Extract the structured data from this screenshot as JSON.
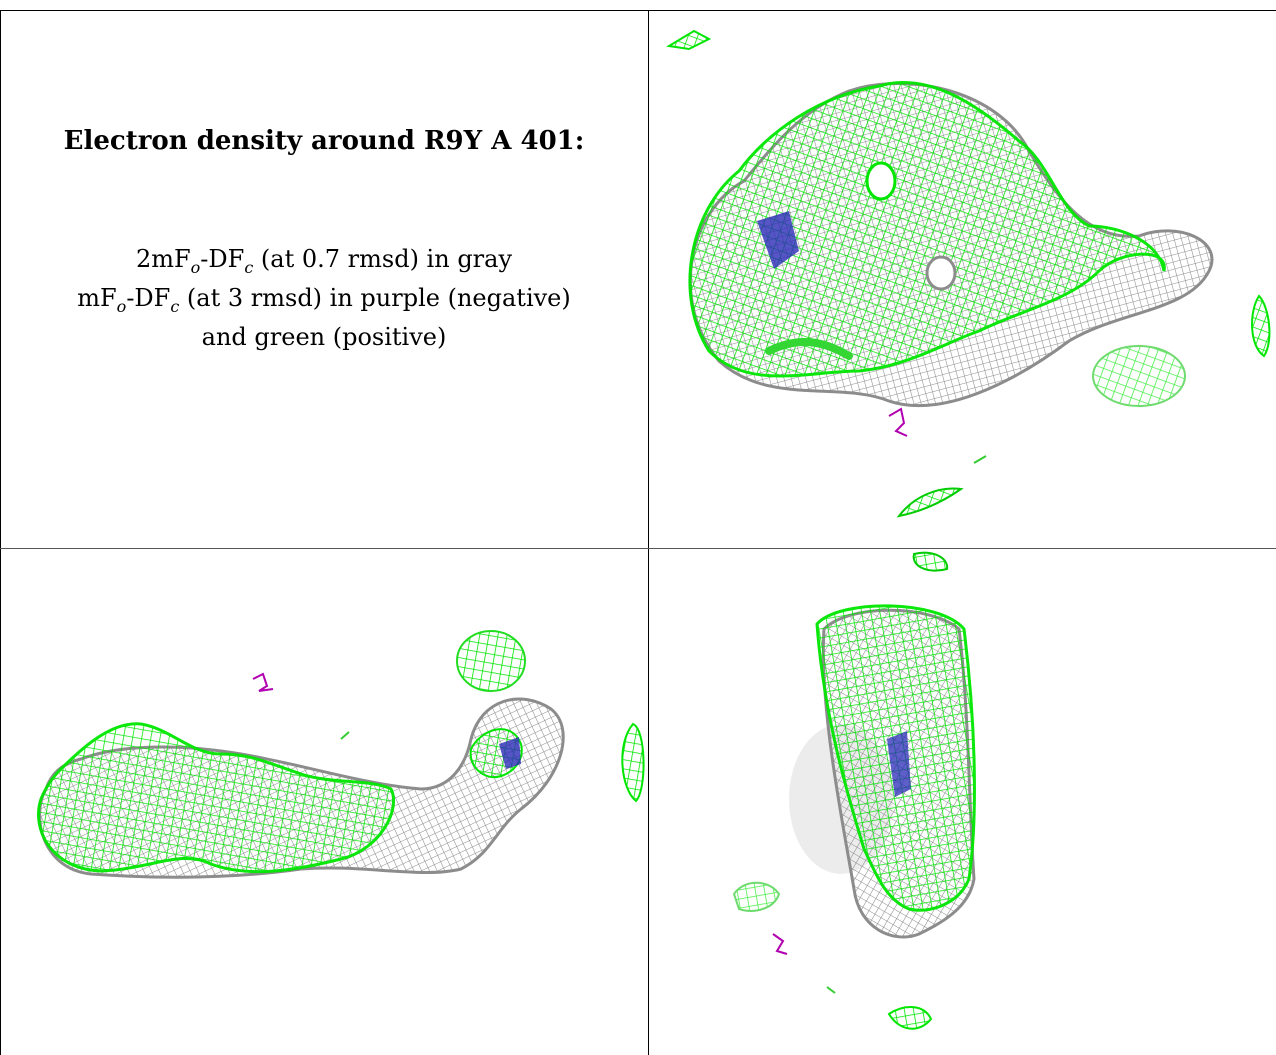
{
  "caption": {
    "title": "Electron density around R9Y A 401:",
    "line1": {
      "a": "2mF",
      "sub1": "o",
      "b": "-DF",
      "sub2": "c",
      "c": " (at 0.7 rmsd) in gray"
    },
    "line2": {
      "a": "mF",
      "sub1": "o",
      "b": "-DF",
      "sub2": "c",
      "c": " (at 3 rmsd) in purple (negative)"
    },
    "line3": "and green (positive)"
  },
  "colors": {
    "map_2fofc": "#9a9a9a",
    "map_fofc_positive": "#00e600",
    "map_fofc_negative": "#b000b0",
    "atom_nitrogen": "#2a2ab8",
    "border": "#000000"
  },
  "views": [
    {
      "name": "view-top-right"
    },
    {
      "name": "view-bottom-left"
    },
    {
      "name": "view-bottom-right"
    }
  ]
}
